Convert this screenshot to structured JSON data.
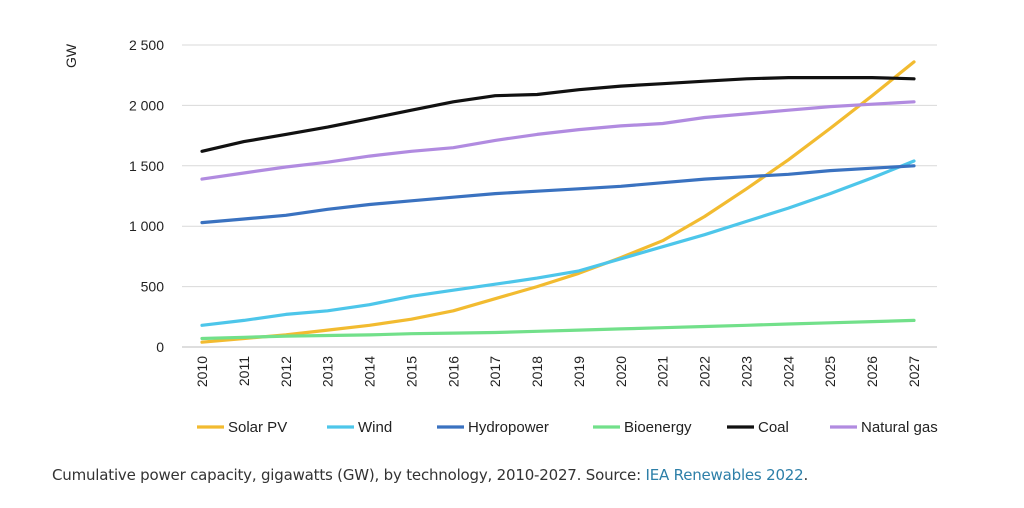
{
  "chart_data": {
    "type": "line",
    "title": "",
    "ylabel": "GW",
    "xlabel": "",
    "ylim": [
      0,
      2500
    ],
    "yticks": [
      0,
      500,
      1000,
      1500,
      2000,
      2500
    ],
    "ytick_labels": [
      "0",
      "500",
      "1 000",
      "1 500",
      "2 000",
      "2 500"
    ],
    "grid": "horizontal",
    "legend_position": "bottom",
    "x": [
      "2010",
      "2011",
      "2012",
      "2013",
      "2014",
      "2015",
      "2016",
      "2017",
      "2018",
      "2019",
      "2020",
      "2021",
      "2022",
      "2023",
      "2024",
      "2025",
      "2026",
      "2027"
    ],
    "series": [
      {
        "name": "Solar PV",
        "color": "#f2bb30",
        "values": [
          40,
          70,
          100,
          140,
          180,
          230,
          300,
          400,
          500,
          610,
          740,
          880,
          1080,
          1310,
          1550,
          1810,
          2080,
          2360
        ]
      },
      {
        "name": "Wind",
        "color": "#4dc6ea",
        "values": [
          180,
          220,
          270,
          300,
          350,
          420,
          470,
          520,
          570,
          630,
          730,
          830,
          930,
          1040,
          1150,
          1270,
          1400,
          1540
        ]
      },
      {
        "name": "Hydropower",
        "color": "#3a72c0",
        "values": [
          1030,
          1060,
          1090,
          1140,
          1180,
          1210,
          1240,
          1270,
          1290,
          1310,
          1330,
          1360,
          1390,
          1410,
          1430,
          1460,
          1480,
          1500
        ]
      },
      {
        "name": "Bioenergy",
        "color": "#72e08a",
        "values": [
          70,
          80,
          90,
          95,
          100,
          110,
          115,
          120,
          130,
          140,
          150,
          160,
          170,
          180,
          190,
          200,
          210,
          220
        ]
      },
      {
        "name": "Coal",
        "color": "#111111",
        "values": [
          1620,
          1700,
          1760,
          1820,
          1890,
          1960,
          2030,
          2080,
          2090,
          2130,
          2160,
          2180,
          2200,
          2220,
          2230,
          2230,
          2230,
          2220
        ]
      },
      {
        "name": "Natural gas",
        "color": "#b18be0",
        "values": [
          1390,
          1440,
          1490,
          1530,
          1580,
          1620,
          1650,
          1710,
          1760,
          1800,
          1830,
          1850,
          1900,
          1930,
          1960,
          1990,
          2010,
          2030
        ]
      }
    ]
  },
  "caption": {
    "text": "Cumulative power capacity, gigawatts (GW), by technology, 2010-2027. Source: ",
    "link_text": "IEA Renewables 2022",
    "end": "."
  }
}
